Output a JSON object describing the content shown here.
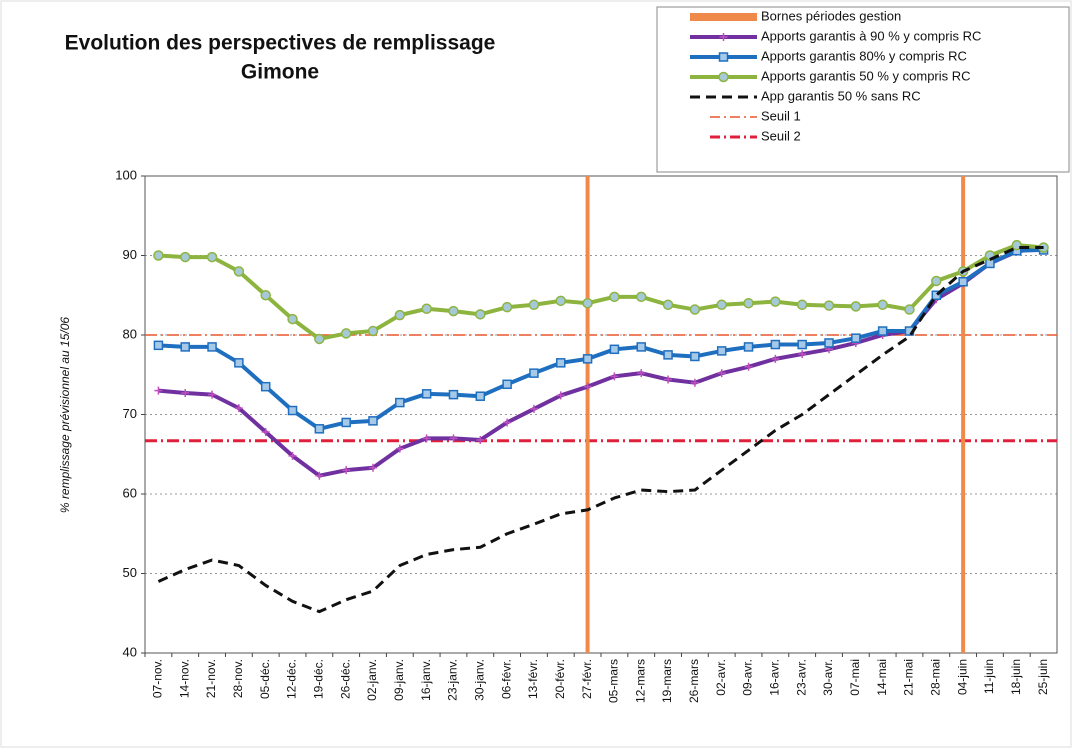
{
  "chart_data": {
    "type": "line",
    "title": "Evolution des perspectives de remplissage",
    "subtitle": "Gimone",
    "y_label": "% remplissage prévisionnel au 15/06",
    "categories": [
      "07-nov.",
      "14-nov.",
      "21-nov.",
      "28-nov.",
      "05-déc.",
      "12-déc.",
      "19-déc.",
      "26-déc.",
      "02-janv.",
      "09-janv.",
      "16-janv.",
      "23-janv.",
      "30-janv.",
      "06-févr.",
      "13-févr.",
      "20-févr.",
      "27-févr.",
      "05-mars",
      "12-mars",
      "19-mars",
      "26-mars",
      "02-avr.",
      "09-avr.",
      "16-avr.",
      "23-avr.",
      "30-avr.",
      "07-mai",
      "14-mai",
      "21-mai",
      "28-mai",
      "04-juin",
      "11-juin",
      "18-juin",
      "25-juin"
    ],
    "period_bounds": {
      "name": "Bornes périodes gestion",
      "color": "#f08a4b",
      "categories": [
        "27-févr.",
        "04-juin"
      ]
    },
    "series": [
      {
        "name": "Apports garantis à 90 % y compris RC",
        "color": "#7030a0",
        "marker": "plus",
        "dash": "solid",
        "values": [
          73,
          72.7,
          72.5,
          70.8,
          67.8,
          64.8,
          62.3,
          63,
          63.3,
          65.7,
          67,
          67,
          66.8,
          69,
          70.7,
          72.4,
          73.5,
          74.8,
          75.2,
          74.4,
          74,
          75.2,
          76,
          77,
          77.6,
          78.2,
          79,
          80,
          80.5,
          84.5,
          86.5,
          89,
          90.5,
          91
        ]
      },
      {
        "name": "Apports garantis 80% y compris RC",
        "color": "#1f6fc0",
        "marker": "square",
        "dash": "solid",
        "values": [
          78.7,
          78.5,
          78.5,
          76.5,
          73.5,
          70.5,
          68.2,
          69,
          69.2,
          71.5,
          72.6,
          72.5,
          72.3,
          73.8,
          75.2,
          76.5,
          77,
          78.2,
          78.5,
          77.5,
          77.3,
          78,
          78.5,
          78.8,
          78.8,
          79,
          79.6,
          80.5,
          80.5,
          85,
          86.7,
          89,
          90.6,
          90.7
        ]
      },
      {
        "name": "Apports garantis 50 % y compris RC",
        "color": "#8db43e",
        "marker": "circle",
        "dash": "solid",
        "values": [
          90,
          89.8,
          89.8,
          88,
          85,
          82,
          79.5,
          80.2,
          80.5,
          82.5,
          83.3,
          83,
          82.6,
          83.5,
          83.8,
          84.3,
          84,
          84.8,
          84.8,
          83.8,
          83.2,
          83.8,
          84,
          84.2,
          83.8,
          83.7,
          83.6,
          83.8,
          83.2,
          86.8,
          88,
          90,
          91.3,
          91
        ]
      },
      {
        "name": "App garantis 50 % sans RC",
        "color": "#111111",
        "marker": "none",
        "dash": "dashed",
        "values": [
          49,
          50.5,
          51.7,
          51,
          48.5,
          46.5,
          45.2,
          46.7,
          47.8,
          51,
          52.4,
          53,
          53.3,
          55,
          56.2,
          57.5,
          58,
          59.5,
          60.5,
          60.3,
          60.5,
          63,
          65.5,
          68,
          70,
          72.5,
          75,
          77.5,
          79.8,
          85,
          88,
          89.5,
          91,
          91
        ]
      }
    ],
    "thresholds": [
      {
        "name": "Seuil 1",
        "value": 80,
        "color": "#e8562a",
        "width": 1.5
      },
      {
        "name": "Seuil 2",
        "value": 66.7,
        "color": "#e0203a",
        "width": 3
      }
    ],
    "ylim": [
      40,
      100
    ],
    "yticks": [
      40,
      50,
      60,
      70,
      80,
      90,
      100
    ],
    "grid": true
  }
}
